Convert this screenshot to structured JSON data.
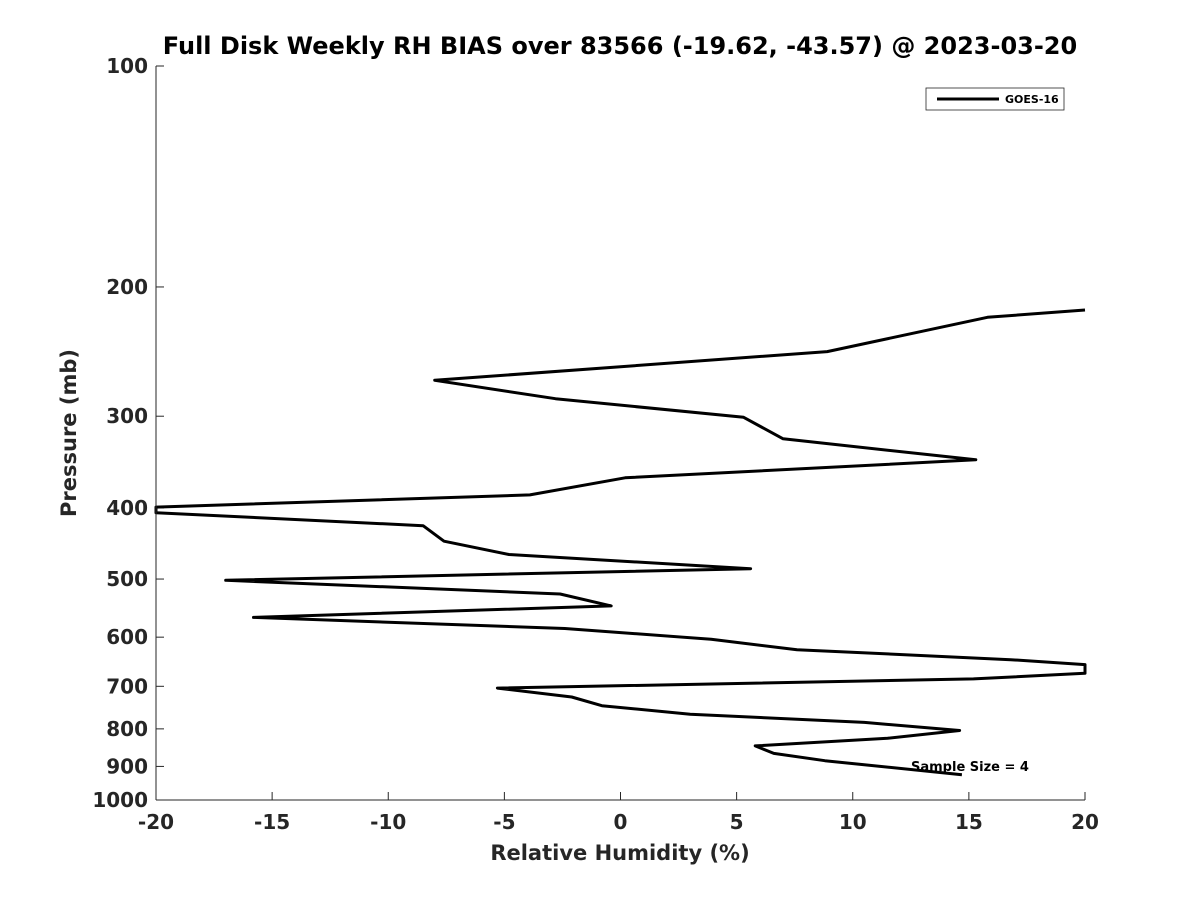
{
  "chart_data": {
    "type": "line",
    "title": "Full Disk Weekly RH BIAS over 83566 (-19.62, -43.57) @ 2023-03-20",
    "xlabel": "Relative Humidity (%)",
    "ylabel": "Pressure (mb)",
    "xlim": [
      -20,
      20
    ],
    "ylim": [
      100,
      1000
    ],
    "y_scale": "log",
    "y_reversed": true,
    "grid": false,
    "legend_position": "top-right",
    "x_ticks": [
      "-20",
      "-15",
      "-10",
      "-5",
      "0",
      "5",
      "10",
      "15",
      "20"
    ],
    "y_ticks": [
      "100",
      "200",
      "300",
      "400",
      "500",
      "600",
      "700",
      "800",
      "900",
      "1000"
    ],
    "annotation": "Sample Size = 4",
    "series": [
      {
        "name": "GOES-16",
        "color": "#000000",
        "points": [
          {
            "x": 20.0,
            "y": 215
          },
          {
            "x": 15.8,
            "y": 220
          },
          {
            "x": 8.9,
            "y": 245
          },
          {
            "x": -8.0,
            "y": 268
          },
          {
            "x": -2.8,
            "y": 284
          },
          {
            "x": 5.3,
            "y": 301
          },
          {
            "x": 7.0,
            "y": 322
          },
          {
            "x": 15.3,
            "y": 344
          },
          {
            "x": 0.2,
            "y": 364
          },
          {
            "x": -3.9,
            "y": 384
          },
          {
            "x": -20.0,
            "y": 399
          },
          {
            "x": -20.0,
            "y": 406
          },
          {
            "x": -8.5,
            "y": 423
          },
          {
            "x": -7.6,
            "y": 444
          },
          {
            "x": -4.8,
            "y": 463
          },
          {
            "x": 5.6,
            "y": 484
          },
          {
            "x": -17.0,
            "y": 502
          },
          {
            "x": -2.6,
            "y": 524
          },
          {
            "x": -0.4,
            "y": 544
          },
          {
            "x": -15.8,
            "y": 564
          },
          {
            "x": -2.4,
            "y": 584
          },
          {
            "x": 3.9,
            "y": 604
          },
          {
            "x": 7.6,
            "y": 624
          },
          {
            "x": 16.8,
            "y": 644
          },
          {
            "x": 20.0,
            "y": 654
          },
          {
            "x": 20.0,
            "y": 672
          },
          {
            "x": 15.2,
            "y": 684
          },
          {
            "x": -5.3,
            "y": 704
          },
          {
            "x": -2.1,
            "y": 724
          },
          {
            "x": -0.8,
            "y": 744
          },
          {
            "x": 3.0,
            "y": 764
          },
          {
            "x": 10.5,
            "y": 784
          },
          {
            "x": 14.6,
            "y": 804
          },
          {
            "x": 11.5,
            "y": 824
          },
          {
            "x": 5.8,
            "y": 844
          },
          {
            "x": 6.6,
            "y": 864
          },
          {
            "x": 8.8,
            "y": 884
          },
          {
            "x": 14.7,
            "y": 924
          }
        ]
      }
    ]
  }
}
